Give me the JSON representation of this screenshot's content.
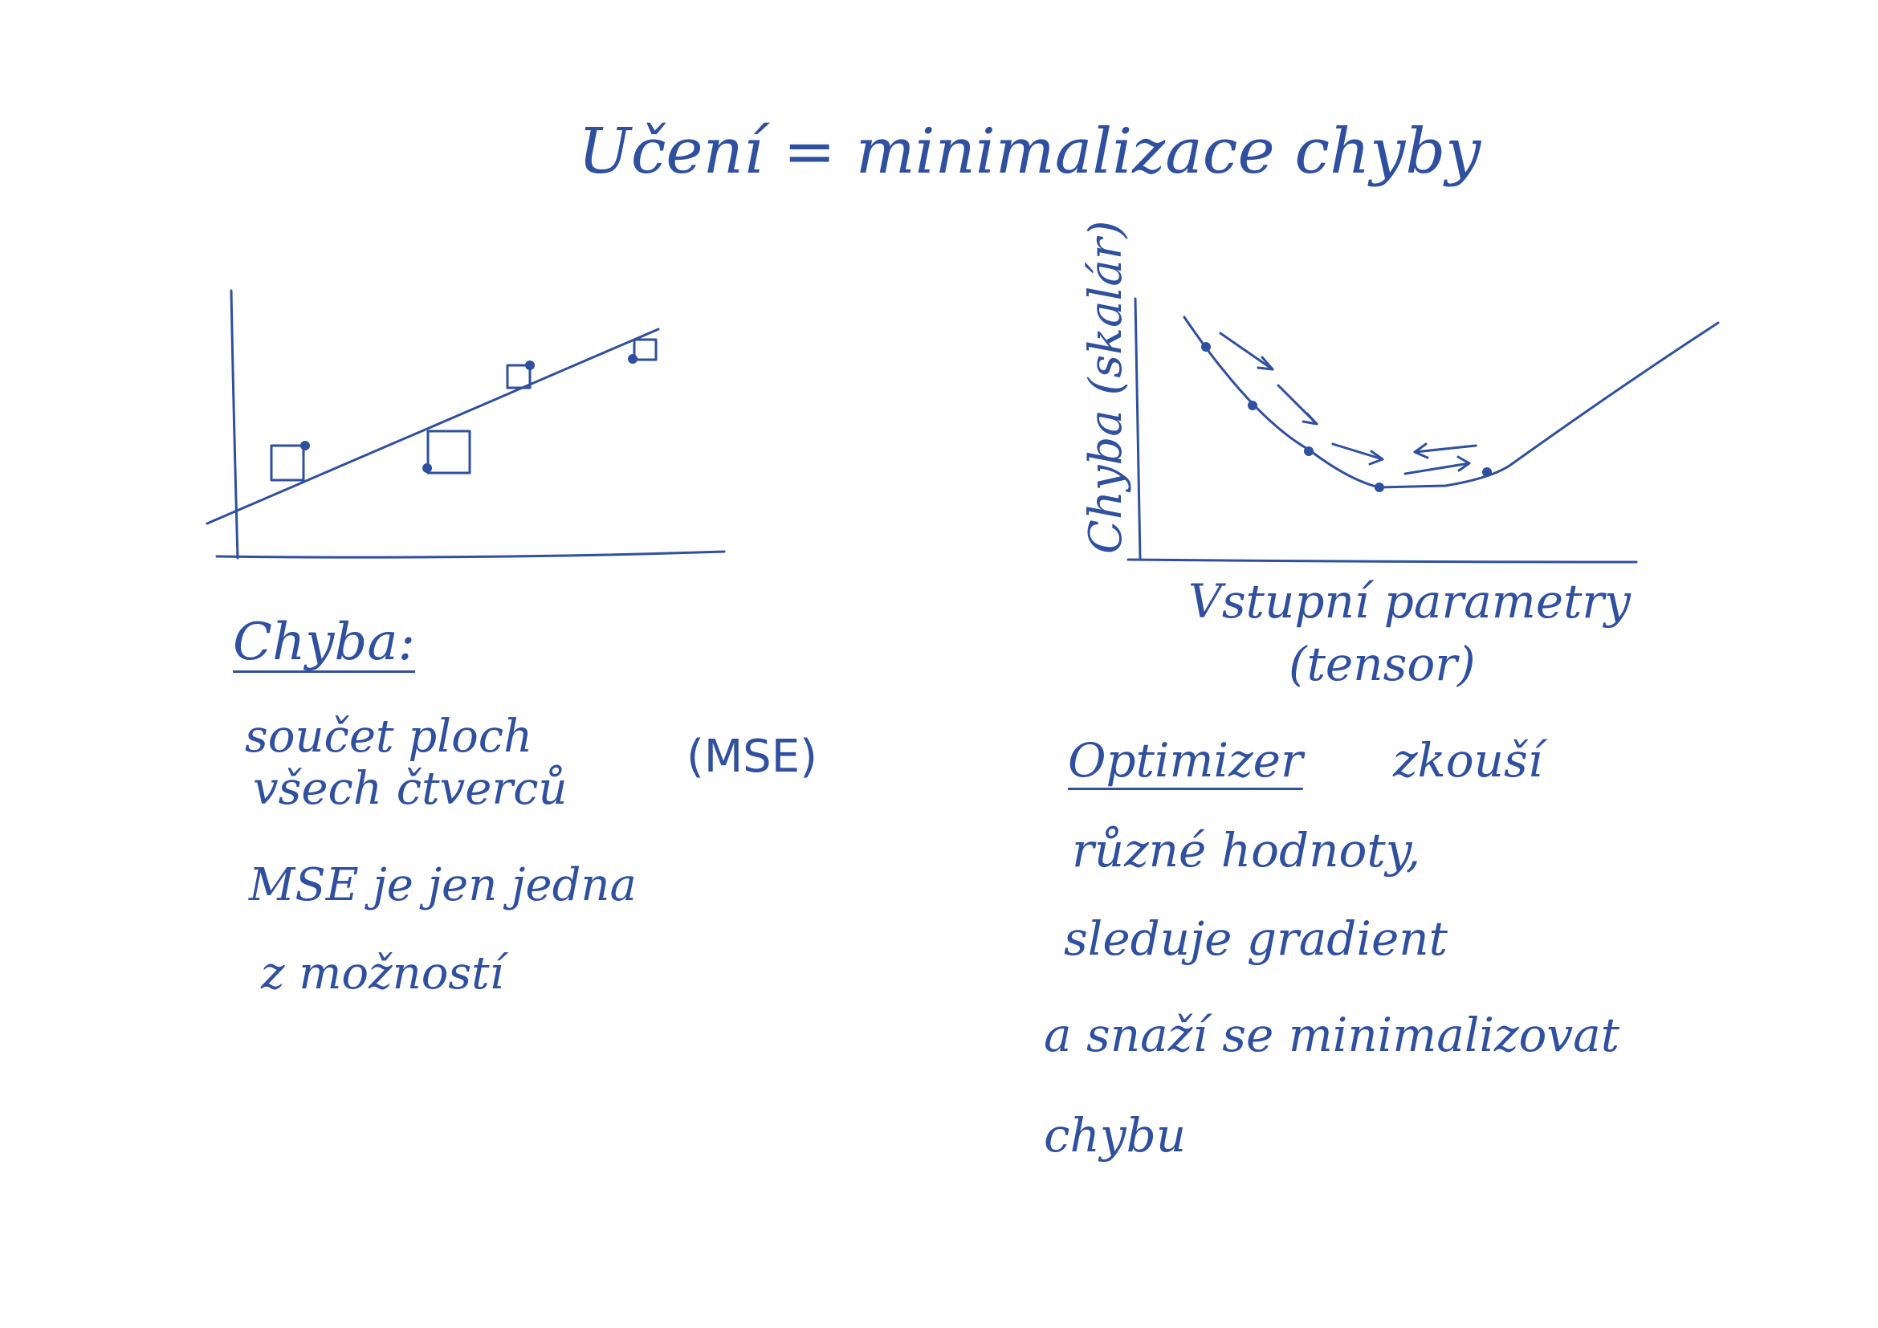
{
  "title": "Učení = minimalizace chyby",
  "left_panel": {
    "label": "Chyba:",
    "line1": "součet ploch",
    "line2": "všech čtverců",
    "paren_note": "(MSE)",
    "line3": "MSE je jen jedna",
    "line4": "z možností"
  },
  "right_panel": {
    "ylabel": "Chyba (skalár)",
    "xlabel_line1": "Vstupní parametry",
    "xlabel_line2": "(tensor)",
    "optimizer_word": "Optimizer",
    "line1_rest": "zkouší",
    "line2": "různé hodnoty,",
    "line3": "sleduje gradient",
    "line4": "a snaží se minimalizovat",
    "line5": "chybu"
  },
  "colors": {
    "ink": "#2f4f9f",
    "paper": "#ffffff"
  }
}
